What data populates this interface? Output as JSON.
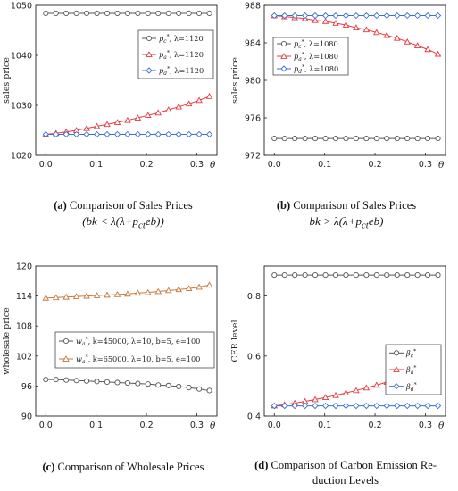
{
  "chart_data": [
    {
      "id": "a",
      "type": "line",
      "ylabel": "sales price",
      "xlabel": "θ",
      "ylim": [
        1020,
        1050
      ],
      "xlim": [
        -0.02,
        0.34
      ],
      "yticks": [
        1020,
        1030,
        1040,
        1050
      ],
      "xticks": [
        0.0,
        0.1,
        0.2,
        0.3
      ],
      "x": [
        0.0,
        0.0203,
        0.0406,
        0.0609,
        0.0812,
        0.1016,
        0.1219,
        0.1422,
        0.1625,
        0.1828,
        0.2031,
        0.2234,
        0.2438,
        0.2641,
        0.2844,
        0.3047,
        0.325
      ],
      "legend": "top-right",
      "series": [
        {
          "label_base": "p",
          "label_sub": "c",
          "label_tail": ", λ=1120",
          "color": "#555555",
          "marker": "circle",
          "values": [
            1048.4,
            1048.4,
            1048.4,
            1048.4,
            1048.4,
            1048.4,
            1048.4,
            1048.4,
            1048.4,
            1048.4,
            1048.4,
            1048.4,
            1048.4,
            1048.4,
            1048.4,
            1048.4,
            1048.4
          ]
        },
        {
          "label_base": "p",
          "label_sub": "a",
          "label_tail": ", λ=1120",
          "color": "#e8383d",
          "marker": "triangle",
          "values": [
            1024.2,
            1024.4,
            1024.7,
            1025.0,
            1025.4,
            1025.8,
            1026.2,
            1026.6,
            1027.0,
            1027.5,
            1028.0,
            1028.5,
            1029.1,
            1029.7,
            1030.3,
            1031.0,
            1031.8
          ]
        },
        {
          "label_base": "p",
          "label_sub": "d",
          "label_tail": ", λ=1120",
          "color": "#3a6fd8",
          "marker": "diamond",
          "values": [
            1024.2,
            1024.2,
            1024.2,
            1024.2,
            1024.2,
            1024.2,
            1024.2,
            1024.2,
            1024.2,
            1024.2,
            1024.2,
            1024.2,
            1024.2,
            1024.2,
            1024.2,
            1024.2,
            1024.2
          ]
        }
      ]
    },
    {
      "id": "b",
      "type": "line",
      "ylabel": "sales price",
      "xlabel": "θ",
      "ylim": [
        972,
        988
      ],
      "xlim": [
        -0.02,
        0.34
      ],
      "yticks": [
        972,
        976,
        980,
        984,
        988
      ],
      "xticks": [
        0.0,
        0.1,
        0.2,
        0.3
      ],
      "x": [
        0.0,
        0.0203,
        0.0406,
        0.0609,
        0.0812,
        0.1016,
        0.1219,
        0.1422,
        0.1625,
        0.1828,
        0.2031,
        0.2234,
        0.2438,
        0.2641,
        0.2844,
        0.3047,
        0.325
      ],
      "legend": "top-right",
      "series": [
        {
          "label_base": "p",
          "label_sub": "c",
          "label_tail": ", λ=1080",
          "color": "#555555",
          "marker": "circle",
          "values": [
            973.8,
            973.8,
            973.8,
            973.8,
            973.8,
            973.8,
            973.8,
            973.8,
            973.8,
            973.8,
            973.8,
            973.8,
            973.8,
            973.8,
            973.8,
            973.8,
            973.8
          ]
        },
        {
          "label_base": "p",
          "label_sub": "a",
          "label_tail": ", λ=1080",
          "color": "#e8383d",
          "marker": "triangle",
          "values": [
            986.9,
            986.8,
            986.7,
            986.6,
            986.4,
            986.3,
            986.1,
            985.9,
            985.6,
            985.4,
            985.1,
            984.8,
            984.5,
            984.1,
            983.7,
            983.3,
            982.8
          ]
        },
        {
          "label_base": "p",
          "label_sub": "d",
          "label_tail": ", λ=1080",
          "color": "#3a6fd8",
          "marker": "diamond",
          "values": [
            986.9,
            986.9,
            986.9,
            986.9,
            986.9,
            986.9,
            986.9,
            986.9,
            986.9,
            986.9,
            986.9,
            986.9,
            986.9,
            986.9,
            986.9,
            986.9,
            986.9
          ]
        }
      ]
    },
    {
      "id": "c",
      "type": "line",
      "ylabel": "wholesale price",
      "xlabel": "θ",
      "ylim": [
        90,
        120
      ],
      "xlim": [
        -0.02,
        0.34
      ],
      "yticks": [
        90,
        96,
        102,
        108,
        114,
        120
      ],
      "xticks": [
        0.0,
        0.1,
        0.2,
        0.3
      ],
      "x": [
        0.0,
        0.0203,
        0.0406,
        0.0609,
        0.0812,
        0.1016,
        0.1219,
        0.1422,
        0.1625,
        0.1828,
        0.2031,
        0.2234,
        0.2438,
        0.2641,
        0.2844,
        0.3047,
        0.325
      ],
      "legend": "center",
      "series": [
        {
          "label_base": "w",
          "label_sub": "a",
          "label_tail": ", k=45000, λ=10, b=5, e=100",
          "color": "#555555",
          "marker": "circle",
          "values": [
            97.3,
            97.3,
            97.2,
            97.1,
            97.0,
            96.9,
            96.8,
            96.7,
            96.6,
            96.5,
            96.4,
            96.2,
            96.1,
            95.9,
            95.7,
            95.4,
            95.1
          ]
        },
        {
          "label_base": "w",
          "label_sub": "a",
          "label_tail": ", k=65000, λ=10, b=5, e=100",
          "color": "#c8783a",
          "marker": "triangle",
          "values": [
            113.6,
            113.7,
            113.8,
            113.9,
            114.0,
            114.1,
            114.2,
            114.3,
            114.4,
            114.6,
            114.7,
            114.9,
            115.1,
            115.3,
            115.5,
            115.8,
            116.2
          ]
        }
      ]
    },
    {
      "id": "d",
      "type": "line",
      "ylabel": "CER level",
      "xlabel": "θ",
      "ylim": [
        0.4,
        0.9
      ],
      "xlim": [
        -0.02,
        0.34
      ],
      "yticks": [
        0.4,
        0.6,
        0.8
      ],
      "xticks": [
        0.0,
        0.1,
        0.2,
        0.3
      ],
      "x": [
        0.0,
        0.0203,
        0.0406,
        0.0609,
        0.0812,
        0.1016,
        0.1219,
        0.1422,
        0.1625,
        0.1828,
        0.2031,
        0.2234,
        0.2438,
        0.2641,
        0.2844,
        0.3047,
        0.325
      ],
      "legend": "right",
      "series": [
        {
          "label_base": "β",
          "label_sub": "c",
          "label_tail": "",
          "color": "#555555",
          "marker": "circle",
          "values": [
            0.87,
            0.87,
            0.87,
            0.87,
            0.87,
            0.87,
            0.87,
            0.87,
            0.87,
            0.87,
            0.87,
            0.87,
            0.87,
            0.87,
            0.87,
            0.87,
            0.87
          ]
        },
        {
          "label_base": "β",
          "label_sub": "a",
          "label_tail": "",
          "color": "#e8383d",
          "marker": "triangle",
          "values": [
            0.434,
            0.438,
            0.443,
            0.449,
            0.455,
            0.462,
            0.469,
            0.477,
            0.485,
            0.494,
            0.503,
            0.513,
            0.524,
            0.535,
            0.547,
            0.559,
            0.573
          ]
        },
        {
          "label_base": "β",
          "label_sub": "d",
          "label_tail": "",
          "color": "#3a6fd8",
          "marker": "diamond",
          "values": [
            0.434,
            0.434,
            0.434,
            0.434,
            0.434,
            0.434,
            0.434,
            0.434,
            0.434,
            0.434,
            0.434,
            0.434,
            0.434,
            0.434,
            0.434,
            0.434,
            0.434
          ]
        }
      ]
    }
  ],
  "captions": [
    {
      "id": "a",
      "letter": "(a)",
      "text": " Comparison of Sales Prices",
      "formula": "(bk < λ(λ+p_ct eb))"
    },
    {
      "id": "b",
      "letter": "(b)",
      "text": " Comparison of Sales Prices",
      "formula": "bk > λ(λ+p_ct eb)"
    },
    {
      "id": "c",
      "letter": "(c)",
      "text": " Comparison of Wholesale Prices",
      "formula": ""
    },
    {
      "id": "d",
      "letter": "(d)",
      "text": " Comparison of Carbon Emission Re-",
      "line2": "duction Levels"
    }
  ]
}
